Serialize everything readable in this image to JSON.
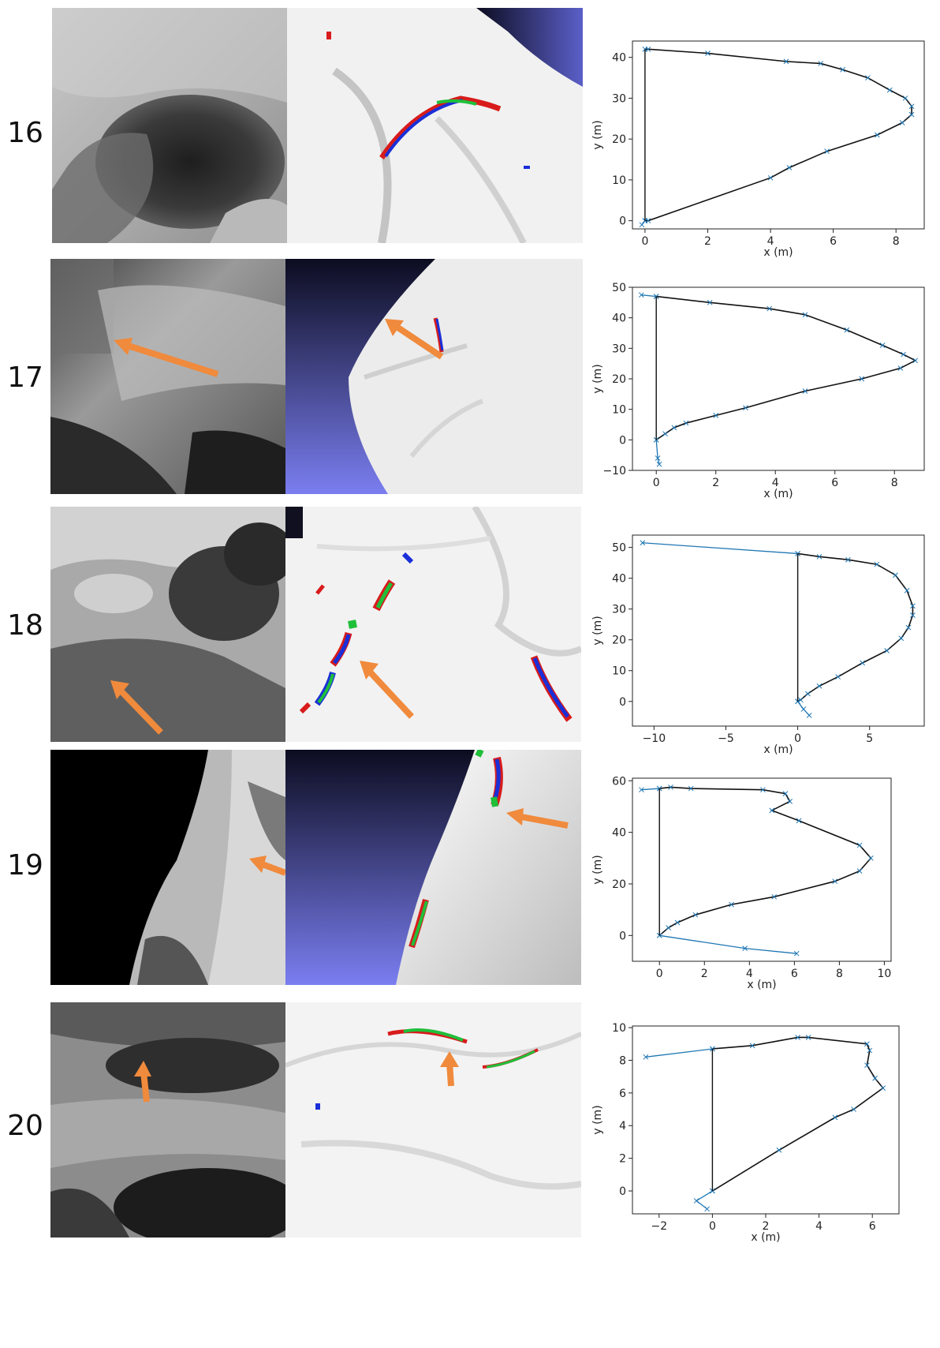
{
  "figure": {
    "rows": [
      {
        "label": "16"
      },
      {
        "label": "17"
      },
      {
        "label": "18"
      },
      {
        "label": "19"
      },
      {
        "label": "20"
      }
    ]
  },
  "colors": {
    "outline": "#111111",
    "extension": "#1f77b4",
    "arrow": "#f08a3c",
    "highlight_red": "#d81b1b",
    "highlight_green": "#1fbf3a",
    "highlight_blue": "#1a2fd8"
  },
  "chart_data": [
    {
      "type": "line",
      "xlabel": "x (m)",
      "ylabel": "y (m)",
      "xlim": [
        -0.4,
        8.9
      ],
      "ylim": [
        -2,
        44
      ],
      "xticks": [
        0,
        2,
        4,
        6,
        8
      ],
      "yticks": [
        0,
        10,
        20,
        30,
        40
      ],
      "grid": false,
      "series": [
        {
          "role": "profile",
          "color": "#111111",
          "marker": "x",
          "x": [
            0,
            0.1,
            2.0,
            4.5,
            5.6,
            6.3,
            7.1,
            7.8,
            8.3,
            8.5,
            8.5,
            8.2,
            7.4,
            5.8,
            4.6,
            4.0,
            0.1,
            0
          ],
          "y": [
            42,
            42,
            41,
            39,
            38.5,
            37,
            35,
            32,
            30,
            28,
            26,
            24,
            21,
            17,
            13,
            10.5,
            0,
            0
          ]
        },
        {
          "role": "extension",
          "color": "#1f77b4",
          "marker": "x",
          "x": [
            0,
            -0.1
          ],
          "y": [
            0,
            -1
          ]
        }
      ]
    },
    {
      "type": "line",
      "xlabel": "x (m)",
      "ylabel": "y (m)",
      "xlim": [
        -0.8,
        9.0
      ],
      "ylim": [
        -10,
        50
      ],
      "xticks": [
        0,
        2,
        4,
        6,
        8
      ],
      "yticks": [
        -10,
        0,
        10,
        20,
        30,
        40,
        50
      ],
      "grid": false,
      "series": [
        {
          "role": "profile",
          "color": "#111111",
          "marker": "x",
          "x": [
            0,
            1.8,
            3.8,
            5.0,
            6.4,
            7.6,
            8.3,
            8.7,
            8.2,
            6.9,
            5.0,
            3.0,
            2.0,
            1.0,
            0.6,
            0.3,
            0
          ],
          "y": [
            47,
            45,
            43,
            41,
            36,
            31,
            28,
            26,
            23.5,
            20,
            16,
            10.5,
            8,
            5.5,
            4,
            2,
            0
          ]
        },
        {
          "role": "extension",
          "color": "#1f77b4",
          "marker": "x",
          "x": [
            0,
            -0.5
          ],
          "y": [
            47,
            47.5
          ]
        },
        {
          "role": "extension-low",
          "color": "#1f77b4",
          "marker": "x",
          "x": [
            0,
            0.05,
            0.1
          ],
          "y": [
            0,
            -6,
            -8
          ]
        }
      ]
    },
    {
      "type": "line",
      "xlabel": "x (m)",
      "ylabel": "y (m)",
      "xlim": [
        -11.5,
        8.8
      ],
      "ylim": [
        -8,
        54
      ],
      "xticks": [
        -10,
        -5,
        0,
        5
      ],
      "yticks": [
        0,
        10,
        20,
        30,
        40,
        50
      ],
      "grid": false,
      "series": [
        {
          "role": "profile",
          "color": "#111111",
          "marker": "x",
          "x": [
            0,
            1.5,
            3.5,
            5.5,
            6.8,
            7.6,
            8.0,
            8.0,
            7.7,
            7.2,
            6.2,
            4.5,
            2.8,
            1.5,
            0.7,
            0.2,
            0
          ],
          "y": [
            48,
            47,
            46,
            44.5,
            41,
            36,
            31,
            28,
            24,
            20.5,
            16.5,
            12.5,
            8,
            5,
            2.5,
            0.5,
            0
          ]
        },
        {
          "role": "extension",
          "color": "#1f77b4",
          "marker": "x",
          "x": [
            -10.8,
            0
          ],
          "y": [
            51.5,
            48
          ]
        },
        {
          "role": "extension-low",
          "color": "#1f77b4",
          "marker": "x",
          "x": [
            0,
            0.4,
            0.8
          ],
          "y": [
            0,
            -2.5,
            -4.5
          ]
        }
      ]
    },
    {
      "type": "line",
      "xlabel": "x (m)",
      "ylabel": "y (m)",
      "xlim": [
        -1.2,
        10.3
      ],
      "ylim": [
        -10,
        61
      ],
      "xticks": [
        0,
        2,
        4,
        6,
        8,
        10
      ],
      "yticks": [
        0,
        20,
        40,
        60
      ],
      "grid": false,
      "series": [
        {
          "role": "profile",
          "color": "#111111",
          "marker": "x",
          "x": [
            0,
            0.5,
            1.4,
            4.6,
            5.6,
            5.8,
            5.0,
            6.2,
            8.9,
            9.4,
            8.9,
            7.8,
            5.1,
            3.2,
            1.6,
            0.8,
            0.4,
            0
          ],
          "y": [
            57,
            57.5,
            57,
            56.5,
            55,
            52,
            48.5,
            44.5,
            35,
            30,
            25,
            21,
            15,
            12,
            8,
            5,
            3,
            0
          ]
        },
        {
          "role": "extension",
          "color": "#1f77b4",
          "marker": "x",
          "x": [
            -0.8,
            0
          ],
          "y": [
            56.5,
            57
          ]
        },
        {
          "role": "extension-low",
          "color": "#1f77b4",
          "marker": "x",
          "x": [
            0,
            3.8,
            6.1
          ],
          "y": [
            0,
            -5,
            -7
          ]
        }
      ]
    },
    {
      "type": "line",
      "xlabel": "x (m)",
      "ylabel": "y (m)",
      "xlim": [
        -3.0,
        7.0
      ],
      "ylim": [
        -1.4,
        10.1
      ],
      "xticks": [
        -2,
        0,
        2,
        4,
        6
      ],
      "yticks": [
        0,
        2,
        4,
        6,
        8,
        10
      ],
      "grid": false,
      "series": [
        {
          "role": "profile",
          "color": "#111111",
          "marker": "x",
          "x": [
            0,
            1.5,
            3.2,
            3.6,
            5.8,
            5.9,
            5.8,
            6.1,
            6.4,
            5.3,
            4.6,
            2.5,
            0
          ],
          "y": [
            8.7,
            8.9,
            9.4,
            9.4,
            9.0,
            8.6,
            7.7,
            6.9,
            6.3,
            5.0,
            4.5,
            2.5,
            0
          ]
        },
        {
          "role": "extension",
          "color": "#1f77b4",
          "marker": "x",
          "x": [
            -2.5,
            0
          ],
          "y": [
            8.2,
            8.7
          ]
        },
        {
          "role": "extension-low",
          "color": "#1f77b4",
          "marker": "x",
          "x": [
            0,
            -0.6,
            -0.2
          ],
          "y": [
            0,
            -0.6,
            -1.1
          ]
        }
      ]
    }
  ]
}
